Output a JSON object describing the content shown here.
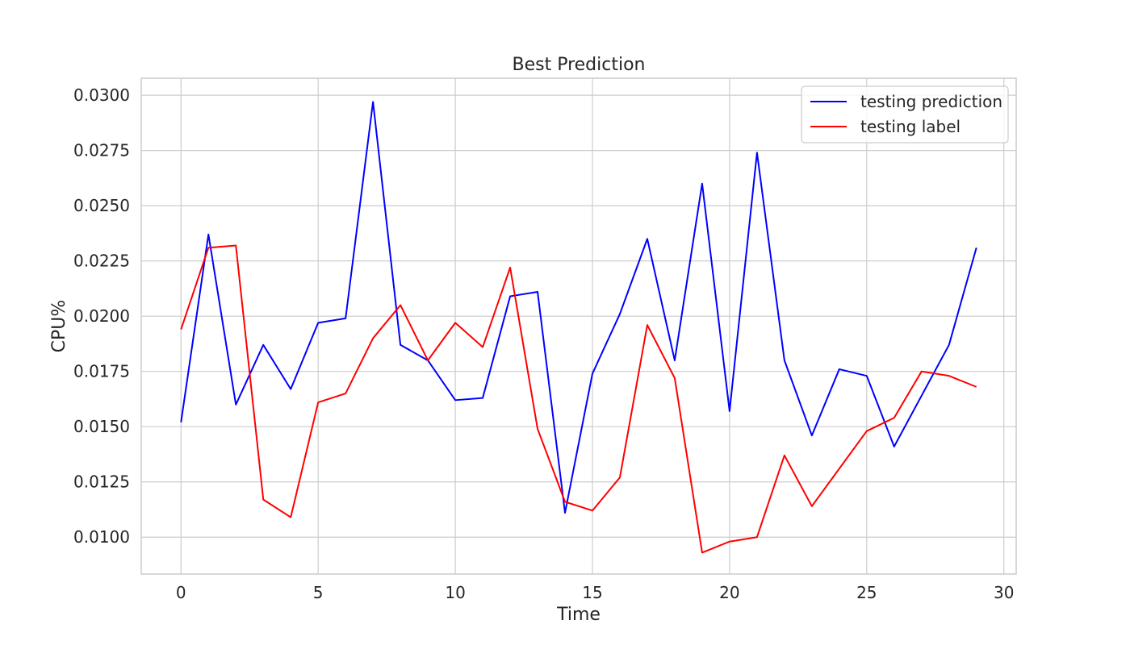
{
  "chart_data": {
    "type": "line",
    "title": "Best Prediction",
    "xlabel": "Time",
    "ylabel": "CPU%",
    "x": [
      0,
      1,
      2,
      3,
      4,
      5,
      6,
      7,
      8,
      9,
      10,
      11,
      12,
      13,
      14,
      15,
      16,
      17,
      18,
      19,
      20,
      21,
      22,
      23,
      24,
      25,
      26,
      27,
      28,
      29
    ],
    "xlim": [
      -1.45,
      30.45
    ],
    "ylim": [
      0.00833,
      0.03077
    ],
    "xticks": [
      0,
      5,
      10,
      15,
      20,
      25,
      30
    ],
    "xtick_labels": [
      "0",
      "5",
      "10",
      "15",
      "20",
      "25",
      "30"
    ],
    "yticks": [
      0.01,
      0.0125,
      0.015,
      0.0175,
      0.02,
      0.0225,
      0.025,
      0.0275,
      0.03
    ],
    "ytick_labels": [
      "0.0100",
      "0.0125",
      "0.0150",
      "0.0175",
      "0.0200",
      "0.0225",
      "0.0250",
      "0.0275",
      "0.0300"
    ],
    "grid": true,
    "legend_position": "top-right",
    "series": [
      {
        "name": "testing prediction",
        "color": "#0000ff",
        "values": [
          0.0152,
          0.0237,
          0.016,
          0.0187,
          0.0167,
          0.0197,
          0.0199,
          0.0297,
          0.0187,
          0.018,
          0.0162,
          0.0163,
          0.0209,
          0.0211,
          0.0111,
          0.0174,
          0.0201,
          0.0235,
          0.018,
          0.026,
          0.0157,
          0.0274,
          0.018,
          0.0146,
          0.0176,
          0.0173,
          0.0141,
          0.0164,
          0.0187,
          0.0231
        ]
      },
      {
        "name": "testing label",
        "color": "#ff0000",
        "values": [
          0.0194,
          0.0231,
          0.0232,
          0.0117,
          0.0109,
          0.0161,
          0.0165,
          0.019,
          0.0205,
          0.018,
          0.0197,
          0.0186,
          0.0222,
          0.0149,
          0.0116,
          0.0112,
          0.0127,
          0.0196,
          0.0172,
          0.0093,
          0.0098,
          0.01,
          0.0137,
          0.0114,
          0.0131,
          0.0148,
          0.0154,
          0.0175,
          0.0173,
          0.0168
        ]
      }
    ]
  }
}
